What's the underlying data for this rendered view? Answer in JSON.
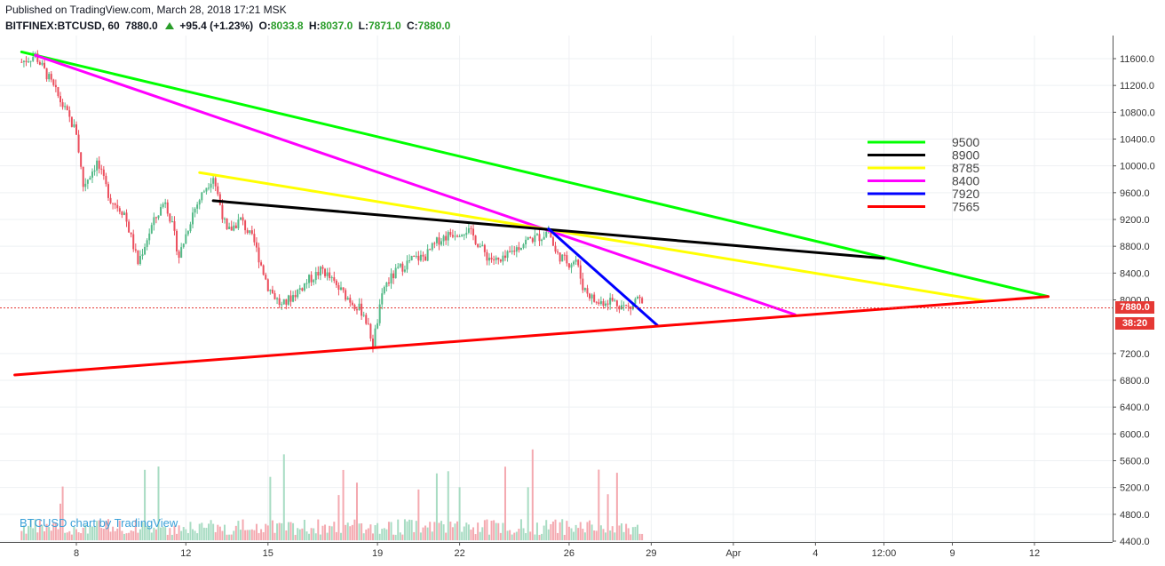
{
  "header": {
    "published": "Published on TradingView.com, March 28, 2018 17:21 MSK",
    "symbol": "BITFINEX:BTCUSD, 60",
    "last": "7880.0",
    "change": "+95.4 (+1.23%)",
    "o_label": "O:",
    "o_value": "8033.8",
    "h_label": "H:",
    "h_value": "8037.0",
    "l_label": "L:",
    "l_value": "7871.0",
    "c_label": "C:",
    "c_value": "7880.0"
  },
  "watermark": "BTCUSD chart by TradingView",
  "price_badge": "7880.0",
  "timer_badge": "38:20",
  "chart_data": {
    "type": "candlestick",
    "y_ticks": [
      "11600.0",
      "11200.0",
      "10800.0",
      "10400.0",
      "10000.0",
      "9600.0",
      "9200.0",
      "8800.0",
      "8400.0",
      "8000.0",
      "7200.0",
      "6800.0",
      "6400.0",
      "6000.0",
      "5600.0",
      "5200.0",
      "4800.0",
      "4400.0"
    ],
    "y_tick_values": [
      11600,
      11200,
      10800,
      10400,
      10000,
      9600,
      9200,
      8800,
      8400,
      8000,
      7200,
      6800,
      6400,
      6000,
      5600,
      5200,
      4800,
      4400
    ],
    "x_ticks": [
      "8",
      "12",
      "15",
      "19",
      "22",
      "26",
      "29",
      "Apr",
      "4",
      "12:00",
      "9",
      "12"
    ],
    "x_tick_dates": [
      "2018-03-08",
      "2018-03-12",
      "2018-03-15",
      "2018-03-19",
      "2018-03-22",
      "2018-03-26",
      "2018-03-29",
      "2018-04-01",
      "2018-04-04",
      "2018-04-06 12:00",
      "2018-04-09",
      "2018-04-12"
    ],
    "last_price": 7880.0,
    "price_path": [
      [
        "2018-03-06 00:00",
        11550
      ],
      [
        "2018-03-06 12:00",
        11650
      ],
      [
        "2018-03-07 00:00",
        11300
      ],
      [
        "2018-03-07 12:00",
        10900
      ],
      [
        "2018-03-08 00:00",
        10500
      ],
      [
        "2018-03-08 06:00",
        9700
      ],
      [
        "2018-03-08 18:00",
        10050
      ],
      [
        "2018-03-09 06:00",
        9500
      ],
      [
        "2018-03-09 18:00",
        9300
      ],
      [
        "2018-03-10 06:00",
        8550
      ],
      [
        "2018-03-10 18:00",
        9100
      ],
      [
        "2018-03-11 06:00",
        9500
      ],
      [
        "2018-03-11 12:00",
        9100
      ],
      [
        "2018-03-11 18:00",
        8650
      ],
      [
        "2018-03-12 06:00",
        9300
      ],
      [
        "2018-03-12 18:00",
        9700
      ],
      [
        "2018-03-13 00:00",
        9850
      ],
      [
        "2018-03-13 12:00",
        9000
      ],
      [
        "2018-03-14 00:00",
        9200
      ],
      [
        "2018-03-14 12:00",
        8850
      ],
      [
        "2018-03-15 00:00",
        8200
      ],
      [
        "2018-03-15 12:00",
        7900
      ],
      [
        "2018-03-16 00:00",
        8100
      ],
      [
        "2018-03-16 12:00",
        8300
      ],
      [
        "2018-03-17 00:00",
        8450
      ],
      [
        "2018-03-17 12:00",
        8200
      ],
      [
        "2018-03-18 00:00",
        8000
      ],
      [
        "2018-03-18 12:00",
        7800
      ],
      [
        "2018-03-18 20:00",
        7350
      ],
      [
        "2018-03-19 06:00",
        8200
      ],
      [
        "2018-03-19 18:00",
        8450
      ],
      [
        "2018-03-20 06:00",
        8600
      ],
      [
        "2018-03-20 18:00",
        8650
      ],
      [
        "2018-03-21 06:00",
        8900
      ],
      [
        "2018-03-21 18:00",
        9000
      ],
      [
        "2018-03-22 06:00",
        9050
      ],
      [
        "2018-03-22 12:00",
        8950
      ],
      [
        "2018-03-23 00:00",
        8650
      ],
      [
        "2018-03-23 12:00",
        8550
      ],
      [
        "2018-03-24 00:00",
        8750
      ],
      [
        "2018-03-24 12:00",
        8900
      ],
      [
        "2018-03-25 00:00",
        8950
      ],
      [
        "2018-03-25 06:00",
        9050
      ],
      [
        "2018-03-25 12:00",
        8700
      ],
      [
        "2018-03-26 00:00",
        8550
      ],
      [
        "2018-03-26 06:00",
        8600
      ],
      [
        "2018-03-26 12:00",
        8200
      ],
      [
        "2018-03-27 00:00",
        7950
      ],
      [
        "2018-03-27 12:00",
        8000
      ],
      [
        "2018-03-28 00:00",
        7900
      ],
      [
        "2018-03-28 06:00",
        7880
      ],
      [
        "2018-03-28 12:00",
        8050
      ],
      [
        "2018-03-28 17:00",
        7880
      ]
    ],
    "volume_note": "volume histogram",
    "trendlines": [
      {
        "color": "#00ff00",
        "from": [
          "2018-03-06 00:00",
          11700
        ],
        "to": [
          "2018-04-12 12:00",
          8050
        ]
      },
      {
        "color": "#ff00ff",
        "from": [
          "2018-03-06 12:00",
          11650
        ],
        "to": [
          "2018-04-03 06:00",
          7780
        ]
      },
      {
        "color": "#ffff00",
        "from": [
          "2018-03-12 12:00",
          9900
        ],
        "to": [
          "2018-04-10 06:00",
          7980
        ]
      },
      {
        "color": "#000000",
        "from": [
          "2018-03-13 00:00",
          9480
        ],
        "to": [
          "2018-04-06 12:00",
          8620
        ]
      },
      {
        "color": "#0000ff",
        "from": [
          "2018-03-25 06:00",
          9060
        ],
        "to": [
          "2018-03-29 06:00",
          7610
        ]
      },
      {
        "color": "#ff0000",
        "from": [
          "2018-03-05 18:00",
          6880
        ],
        "to": [
          "2018-04-12 12:00",
          8050
        ]
      }
    ],
    "legend": [
      {
        "color": "#00ff00",
        "value": "9500"
      },
      {
        "color": "#000000",
        "value": "8900"
      },
      {
        "color": "#ffff00",
        "value": "8785"
      },
      {
        "color": "#ff00ff",
        "value": "8400"
      },
      {
        "color": "#0000ff",
        "value": "7920"
      },
      {
        "color": "#ff0000",
        "value": "7565"
      }
    ]
  }
}
